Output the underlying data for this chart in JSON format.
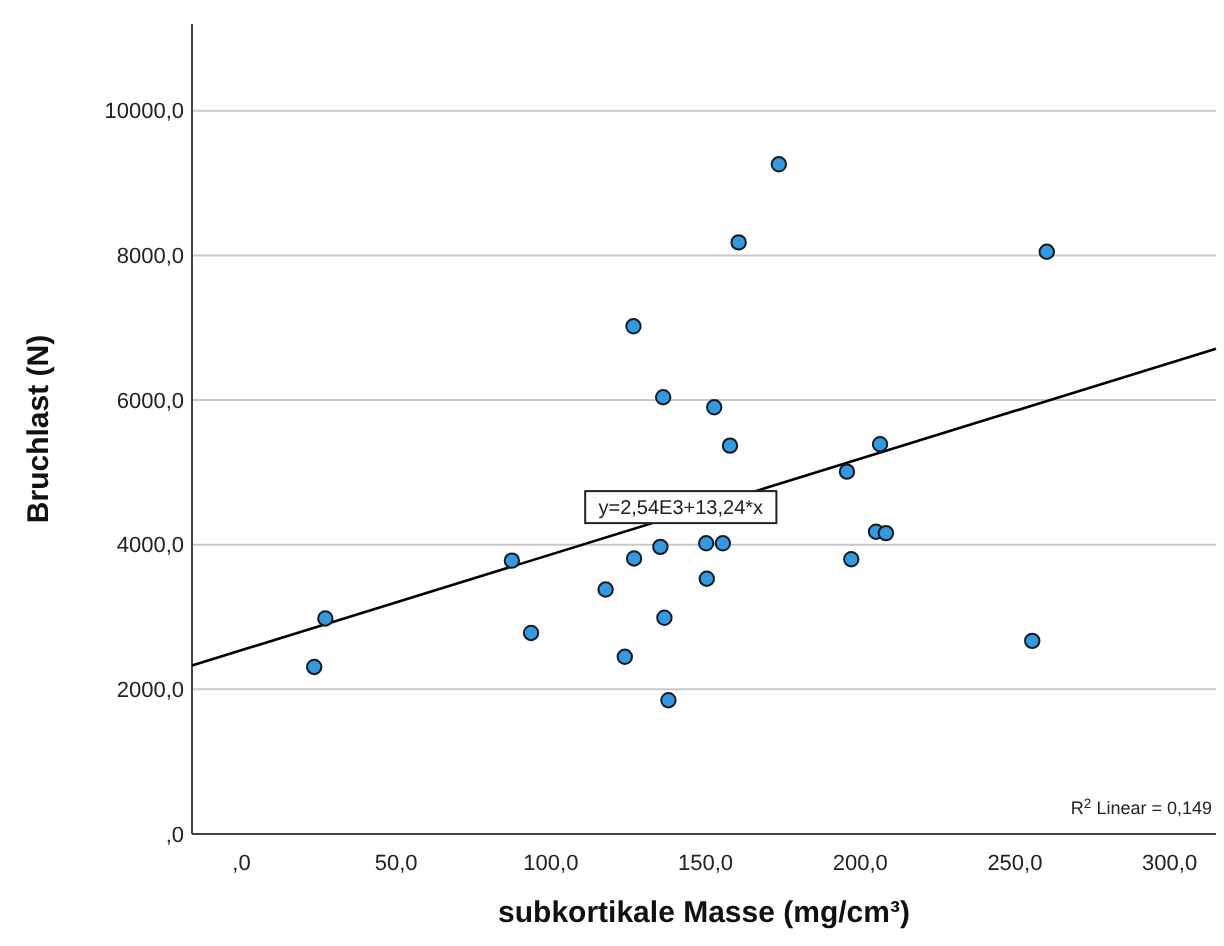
{
  "chart_data": {
    "type": "scatter",
    "xlabel": "subkortikale Masse (mg/cm³)",
    "ylabel": "Bruchlast (N)",
    "xlim": [
      -16,
      315
    ],
    "ylim": [
      0,
      11200
    ],
    "xticks": [
      {
        "value": 0,
        "label": ",0"
      },
      {
        "value": 50,
        "label": "50,0"
      },
      {
        "value": 100,
        "label": "100,0"
      },
      {
        "value": 150,
        "label": "150,0"
      },
      {
        "value": 200,
        "label": "200,0"
      },
      {
        "value": 250,
        "label": "250,0"
      },
      {
        "value": 300,
        "label": "300,0"
      }
    ],
    "yticks": [
      {
        "value": 0,
        "label": ",0"
      },
      {
        "value": 2000,
        "label": "2000,0"
      },
      {
        "value": 4000,
        "label": "4000,0"
      },
      {
        "value": 6000,
        "label": "6000,0"
      },
      {
        "value": 8000,
        "label": "8000,0"
      },
      {
        "value": 10000,
        "label": "10000,0"
      }
    ],
    "grid": "y",
    "marker": "circle",
    "series": [
      {
        "color": "#2f9be6",
        "x": [
          126.7,
          136.3,
          87.4,
          27.1,
          23.5,
          93.6,
          126.9,
          117.7,
          135.4,
          136.7,
          123.9,
          138,
          173.7,
          160.7,
          260.3,
          152.8,
          157.9,
          206.4,
          195.7,
          150.2,
          155.6,
          205.1,
          208.3,
          150.4,
          197.1,
          255.6
        ],
        "values": [
          7020,
          6040,
          3780,
          2980,
          2310,
          2780,
          3810,
          3380,
          3970,
          2990,
          2450,
          1850,
          9260,
          8180,
          8050,
          5900,
          5370,
          5390,
          5010,
          4020,
          4020,
          4180,
          4160,
          3530,
          3800,
          2670
        ]
      },
      {
        "type": "line",
        "color": "#000000",
        "marker": "none",
        "x": [
          -16,
          315
        ],
        "values": [
          2330,
          6710
        ]
      }
    ],
    "annotations": [
      {
        "text": "y=2,54E3+13,24*x",
        "x": 142,
        "y": 4520
      },
      "R$^{2}$ Linear = 0,149"
    ]
  }
}
